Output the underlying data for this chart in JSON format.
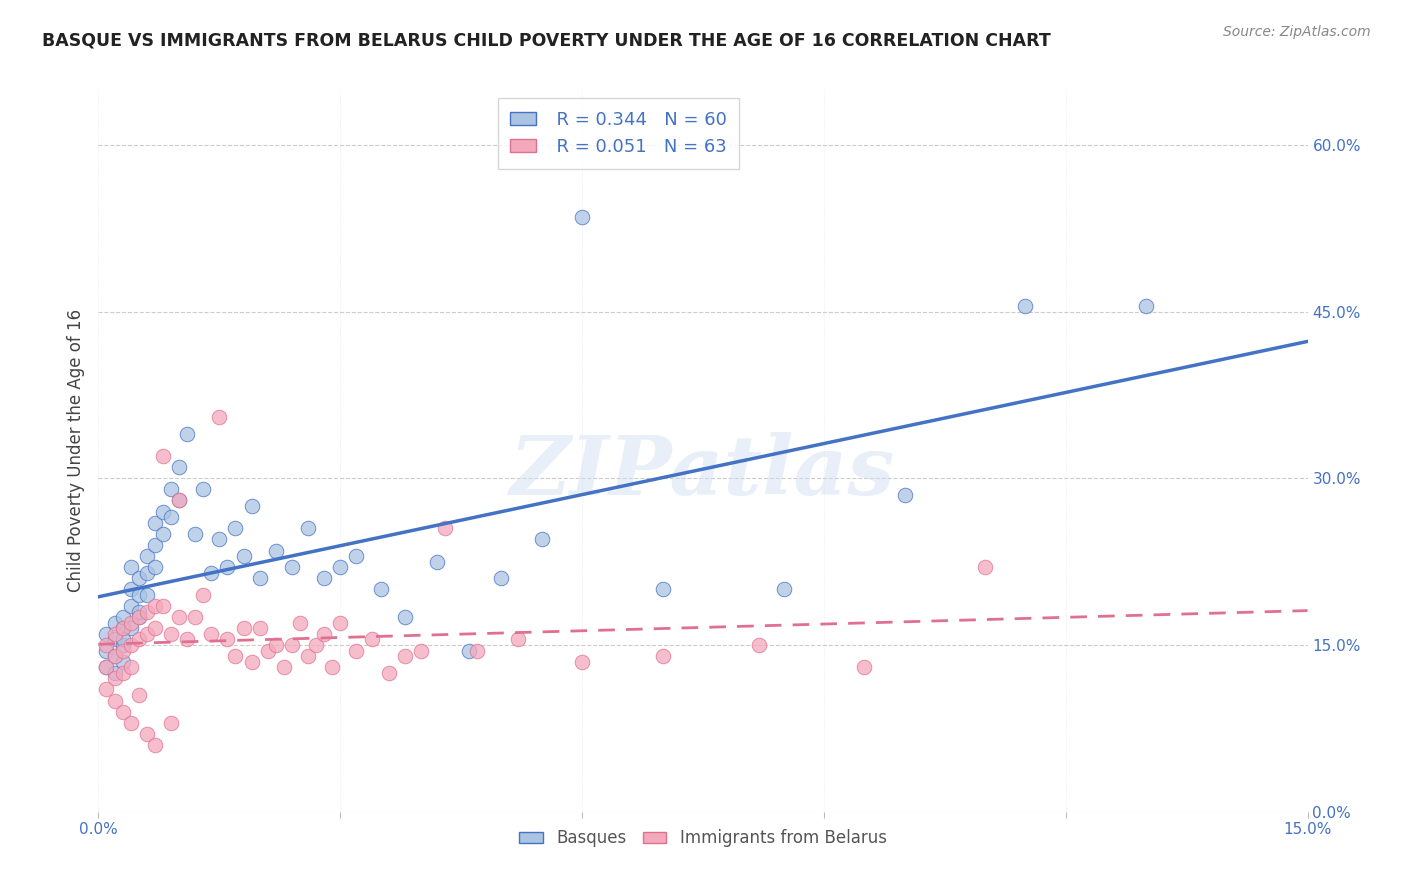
{
  "title": "BASQUE VS IMMIGRANTS FROM BELARUS CHILD POVERTY UNDER THE AGE OF 16 CORRELATION CHART",
  "source": "Source: ZipAtlas.com",
  "ylabel": "Child Poverty Under the Age of 16",
  "xlim": [
    0.0,
    0.15
  ],
  "ylim": [
    0.0,
    0.65
  ],
  "xtick_pos": [
    0.0,
    0.03,
    0.06,
    0.09,
    0.12,
    0.15
  ],
  "xtick_labels": [
    "0.0%",
    "",
    "",
    "",
    "",
    "15.0%"
  ],
  "ytick_labels_right": [
    "0.0%",
    "15.0%",
    "30.0%",
    "45.0%",
    "60.0%"
  ],
  "ytick_positions_right": [
    0.0,
    0.15,
    0.3,
    0.45,
    0.6
  ],
  "legend_R1": "R = 0.344",
  "legend_N1": "N = 60",
  "legend_R2": "R = 0.051",
  "legend_N2": "N = 63",
  "legend_label1": "Basques",
  "legend_label2": "Immigrants from Belarus",
  "color_blue": "#aac4e2",
  "color_pink": "#f4a8bc",
  "trendline_blue": "#4472c4",
  "trendline_pink": "#e07090",
  "watermark_text": "ZIPatlas",
  "background_color": "#ffffff",
  "grid_color": "#cccccc",
  "title_color": "#222222",
  "axis_label_color": "#444444",
  "right_tick_color": "#4472c4",
  "basque_x": [
    0.001,
    0.001,
    0.001,
    0.002,
    0.002,
    0.002,
    0.002,
    0.003,
    0.003,
    0.003,
    0.003,
    0.003,
    0.004,
    0.004,
    0.004,
    0.004,
    0.005,
    0.005,
    0.005,
    0.005,
    0.006,
    0.006,
    0.006,
    0.007,
    0.007,
    0.007,
    0.008,
    0.008,
    0.009,
    0.009,
    0.01,
    0.01,
    0.011,
    0.012,
    0.013,
    0.014,
    0.015,
    0.016,
    0.017,
    0.018,
    0.019,
    0.02,
    0.022,
    0.024,
    0.026,
    0.028,
    0.03,
    0.032,
    0.035,
    0.038,
    0.042,
    0.046,
    0.05,
    0.055,
    0.06,
    0.07,
    0.085,
    0.1,
    0.115,
    0.13
  ],
  "basque_y": [
    0.145,
    0.16,
    0.13,
    0.155,
    0.14,
    0.17,
    0.125,
    0.15,
    0.165,
    0.135,
    0.175,
    0.155,
    0.2,
    0.185,
    0.22,
    0.165,
    0.195,
    0.175,
    0.21,
    0.18,
    0.23,
    0.215,
    0.195,
    0.26,
    0.24,
    0.22,
    0.27,
    0.25,
    0.29,
    0.265,
    0.31,
    0.28,
    0.34,
    0.25,
    0.29,
    0.215,
    0.245,
    0.22,
    0.255,
    0.23,
    0.275,
    0.21,
    0.235,
    0.22,
    0.255,
    0.21,
    0.22,
    0.23,
    0.2,
    0.175,
    0.225,
    0.145,
    0.21,
    0.245,
    0.535,
    0.2,
    0.2,
    0.285,
    0.455,
    0.455
  ],
  "belarus_x": [
    0.001,
    0.001,
    0.001,
    0.002,
    0.002,
    0.002,
    0.002,
    0.003,
    0.003,
    0.003,
    0.003,
    0.004,
    0.004,
    0.004,
    0.004,
    0.005,
    0.005,
    0.005,
    0.006,
    0.006,
    0.006,
    0.007,
    0.007,
    0.007,
    0.008,
    0.008,
    0.009,
    0.009,
    0.01,
    0.01,
    0.011,
    0.012,
    0.013,
    0.014,
    0.015,
    0.016,
    0.017,
    0.018,
    0.019,
    0.02,
    0.021,
    0.022,
    0.023,
    0.024,
    0.025,
    0.026,
    0.027,
    0.028,
    0.029,
    0.03,
    0.032,
    0.034,
    0.036,
    0.038,
    0.04,
    0.043,
    0.047,
    0.052,
    0.06,
    0.07,
    0.082,
    0.095,
    0.11
  ],
  "belarus_y": [
    0.15,
    0.13,
    0.11,
    0.16,
    0.14,
    0.12,
    0.1,
    0.165,
    0.145,
    0.125,
    0.09,
    0.17,
    0.15,
    0.13,
    0.08,
    0.175,
    0.155,
    0.105,
    0.18,
    0.16,
    0.07,
    0.185,
    0.165,
    0.06,
    0.32,
    0.185,
    0.16,
    0.08,
    0.28,
    0.175,
    0.155,
    0.175,
    0.195,
    0.16,
    0.355,
    0.155,
    0.14,
    0.165,
    0.135,
    0.165,
    0.145,
    0.15,
    0.13,
    0.15,
    0.17,
    0.14,
    0.15,
    0.16,
    0.13,
    0.17,
    0.145,
    0.155,
    0.125,
    0.14,
    0.145,
    0.255,
    0.145,
    0.155,
    0.135,
    0.14,
    0.15,
    0.13,
    0.22
  ]
}
